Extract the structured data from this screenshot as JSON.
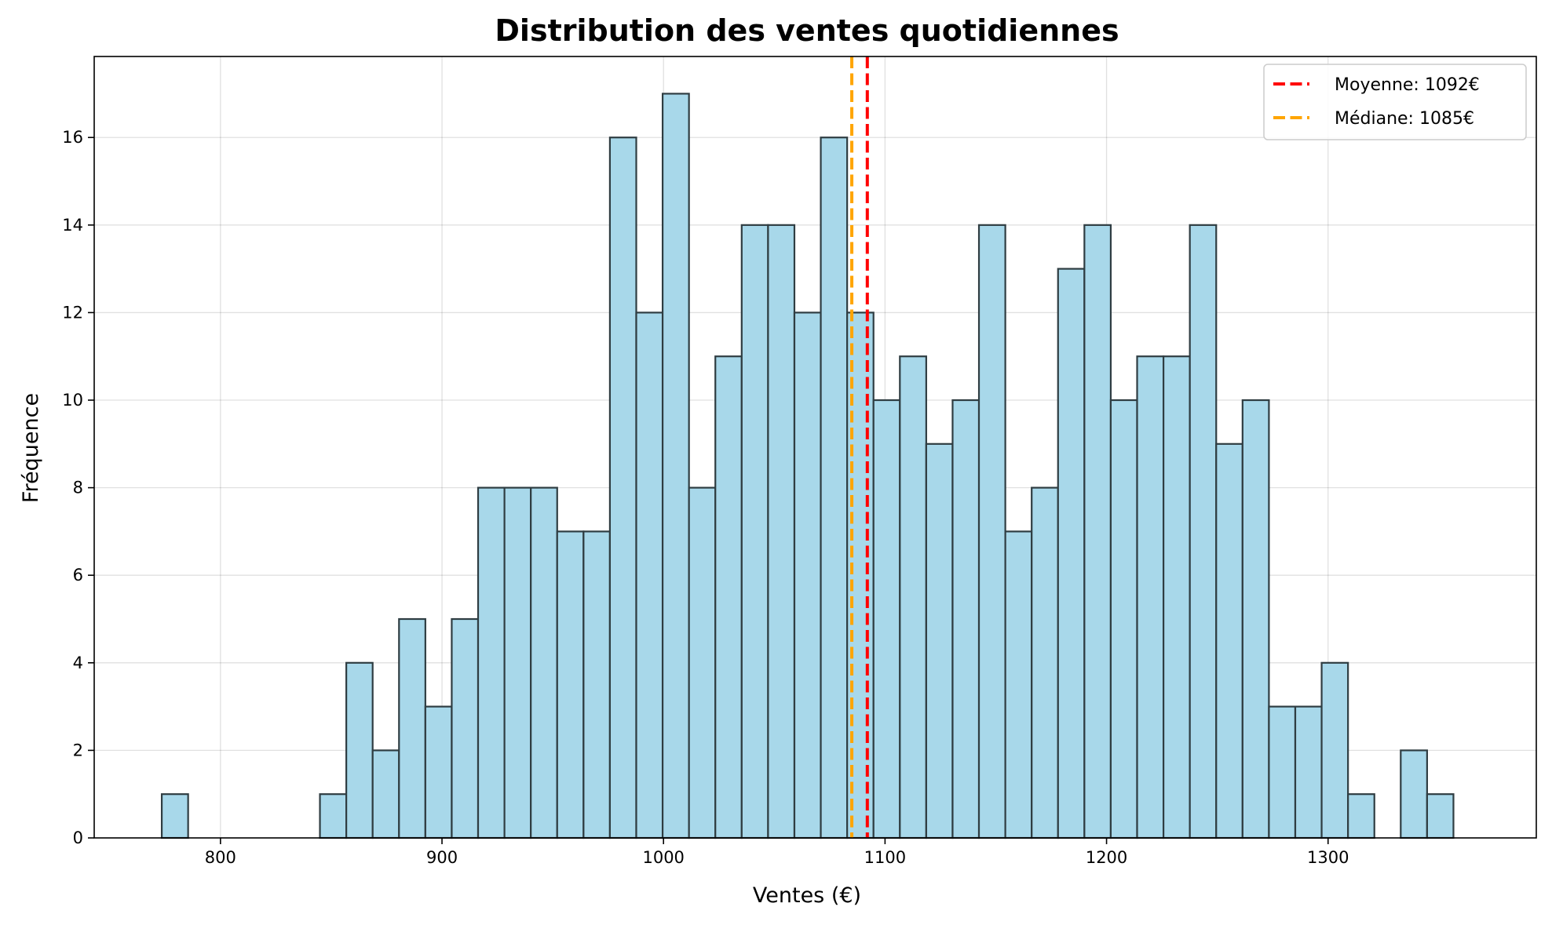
{
  "chart_data": {
    "type": "bar",
    "title": "Distribution des ventes quotidiennes",
    "xlabel": "Ventes (€)",
    "ylabel": "Fréquence",
    "xlim": [
      743,
      1394
    ],
    "ylim": [
      0,
      17.85
    ],
    "x_ticks": [
      800,
      900,
      1000,
      1100,
      1200,
      1300
    ],
    "y_ticks": [
      0,
      2,
      4,
      6,
      8,
      10,
      12,
      14,
      16
    ],
    "grid": true,
    "bin_start": 773.5,
    "bin_width": 11.9,
    "values": [
      1,
      0,
      0,
      0,
      0,
      0,
      1,
      4,
      2,
      5,
      3,
      5,
      8,
      8,
      8,
      7,
      7,
      16,
      12,
      17,
      8,
      11,
      14,
      14,
      12,
      16,
      12,
      10,
      11,
      9,
      10,
      14,
      7,
      8,
      13,
      14,
      10,
      11,
      11,
      14,
      9,
      10,
      3,
      3,
      4,
      1,
      0,
      2,
      1
    ],
    "bar_color": "#a8d8ea",
    "edge_color": "#2f3d42",
    "reference_lines": [
      {
        "label": "Moyenne: 1092€",
        "x": 1092,
        "color": "#ff0000"
      },
      {
        "label": "Médiane: 1085€",
        "x": 1085,
        "color": "#ffa500"
      }
    ],
    "legend_position": "top-right"
  }
}
